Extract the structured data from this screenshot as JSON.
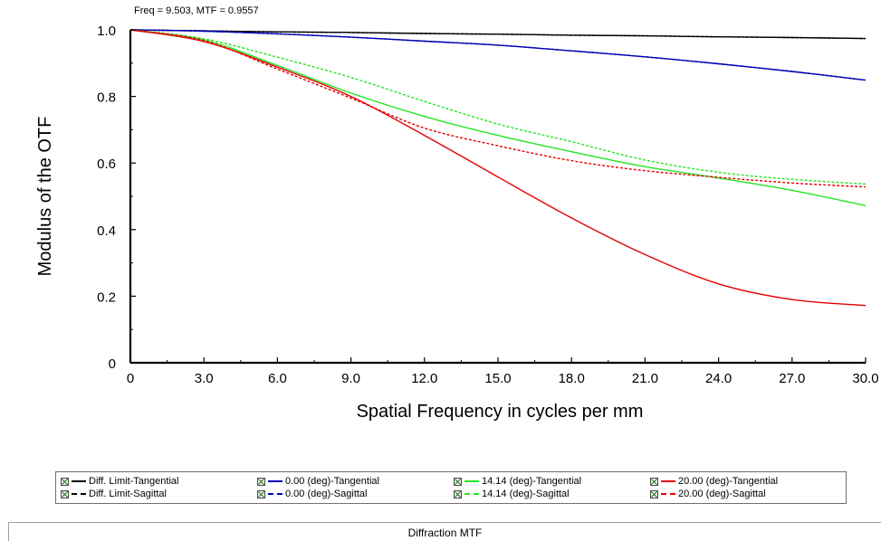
{
  "readout": "Freq = 9.503, MTF = 0.9557",
  "footer": {
    "title": "Diffraction MTF"
  },
  "chart_data": {
    "type": "line",
    "xlabel": "Spatial Frequency in cycles per mm",
    "ylabel": "Modulus of the OTF",
    "xlim": [
      0,
      30
    ],
    "ylim": [
      0,
      1
    ],
    "xticks": [
      0,
      3,
      6,
      9,
      12,
      15,
      18,
      21,
      24,
      27,
      30
    ],
    "xtick_labels": [
      "0",
      "3.0",
      "6.0",
      "9.0",
      "12.0",
      "15.0",
      "18.0",
      "21.0",
      "24.0",
      "27.0",
      "30.0"
    ],
    "yticks": [
      0,
      0.2,
      0.4,
      0.6,
      0.8,
      1.0
    ],
    "ytick_labels": [
      "0",
      "0.2",
      "0.4",
      "0.6",
      "0.8",
      "1.0"
    ],
    "grid": false,
    "legend_position": "bottom",
    "x": [
      0,
      3,
      6,
      9,
      12,
      15,
      18,
      21,
      24,
      27,
      30
    ],
    "series": [
      {
        "name": "Diff. Limit-Tangential",
        "color": "#000000",
        "dash": "solid",
        "values": [
          1.0,
          0.997,
          0.994,
          0.992,
          0.989,
          0.987,
          0.984,
          0.982,
          0.979,
          0.977,
          0.974
        ]
      },
      {
        "name": "Diff. Limit-Sagittal",
        "color": "#000000",
        "dash": "dashed",
        "values": [
          1.0,
          0.997,
          0.994,
          0.992,
          0.989,
          0.987,
          0.984,
          0.982,
          0.979,
          0.977,
          0.974
        ]
      },
      {
        "name": "0.00 (deg)-Tangential",
        "color": "#0000b4",
        "dash": "solid",
        "values": [
          1.0,
          0.996,
          0.988,
          0.978,
          0.966,
          0.954,
          0.937,
          0.919,
          0.898,
          0.875,
          0.849
        ]
      },
      {
        "name": "0.00 (deg)-Sagittal",
        "color": "#0000b4",
        "dash": "dashed",
        "values": [
          1.0,
          0.996,
          0.988,
          0.978,
          0.966,
          0.954,
          0.937,
          0.919,
          0.898,
          0.875,
          0.849
        ]
      },
      {
        "name": "14.14 (deg)-Tangential",
        "color": "#22e622",
        "dash": "solid",
        "values": [
          1.0,
          0.97,
          0.893,
          0.81,
          0.74,
          0.683,
          0.634,
          0.589,
          0.555,
          0.518,
          0.472
        ]
      },
      {
        "name": "14.14 (deg)-Sagittal",
        "color": "#22e622",
        "dash": "dashed",
        "values": [
          1.0,
          0.973,
          0.918,
          0.857,
          0.785,
          0.717,
          0.664,
          0.609,
          0.572,
          0.551,
          0.537
        ]
      },
      {
        "name": "20.00 (deg)-Tangential",
        "color": "#e60000",
        "dash": "solid",
        "values": [
          1.0,
          0.965,
          0.888,
          0.8,
          0.683,
          0.558,
          0.435,
          0.325,
          0.237,
          0.19,
          0.172
        ]
      },
      {
        "name": "20.00 (deg)-Sagittal",
        "color": "#e60000",
        "dash": "dashed",
        "values": [
          1.0,
          0.968,
          0.882,
          0.795,
          0.705,
          0.652,
          0.607,
          0.577,
          0.557,
          0.54,
          0.528
        ]
      }
    ]
  }
}
